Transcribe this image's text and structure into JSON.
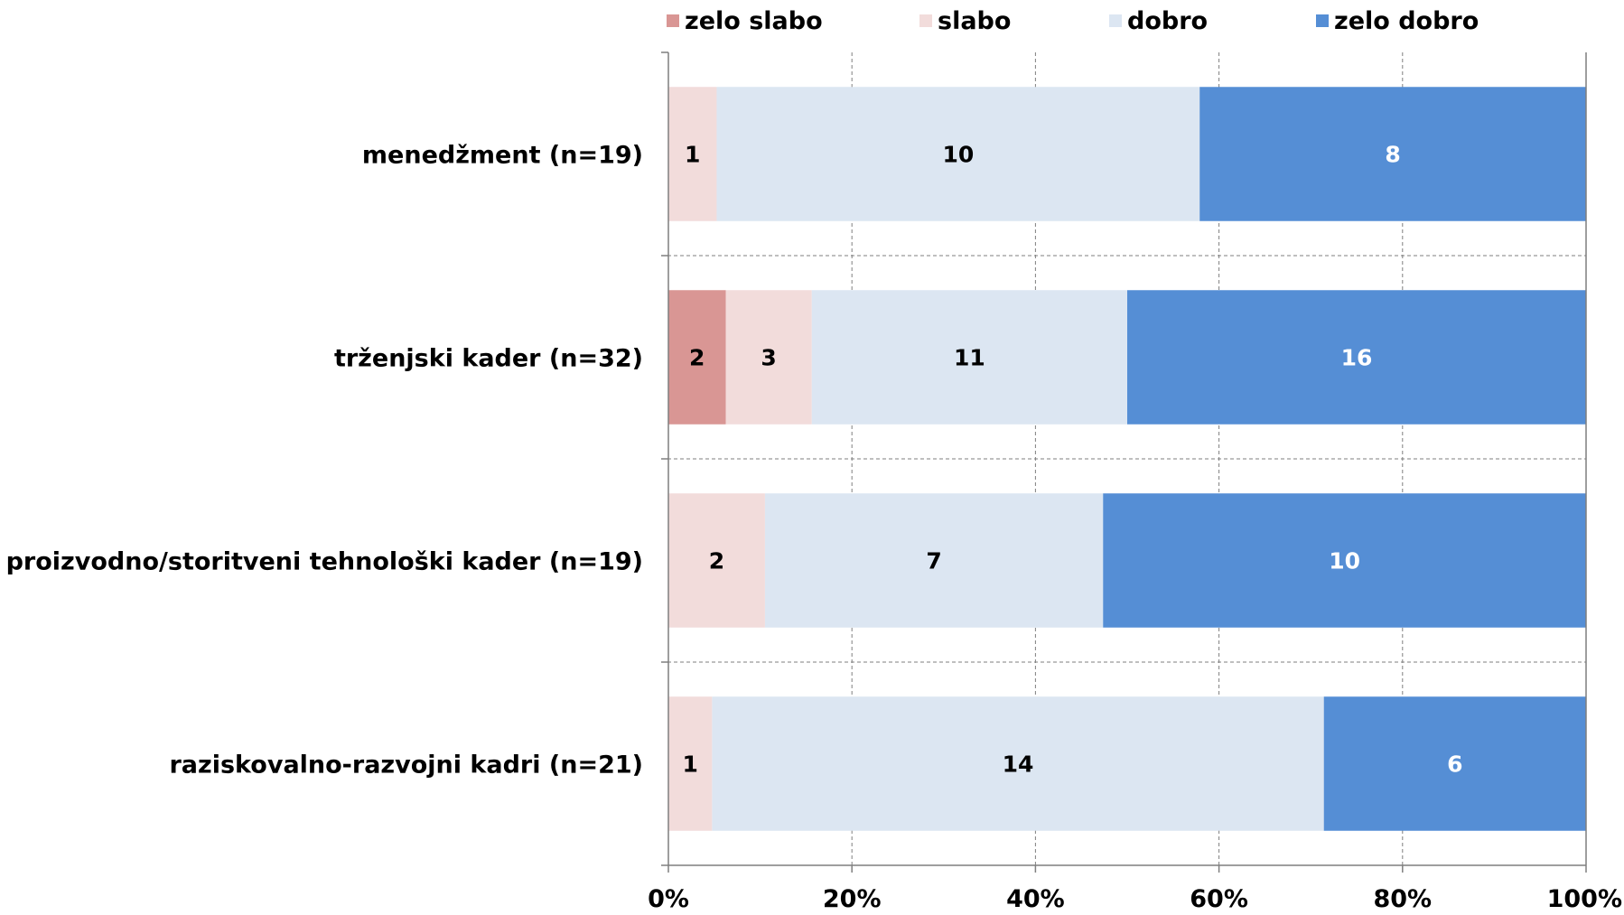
{
  "chart_data": {
    "type": "bar",
    "orientation": "horizontal",
    "stacking": "percent",
    "categories": [
      "menedžment (n=19)",
      "trženjski kader (n=32)",
      "proizvodno/storitveni tehnološki kader (n=19)",
      "raziskovalno-razvojni kadri (n=21)"
    ],
    "series": [
      {
        "name": "zelo slabo",
        "color": "#d99694",
        "label_color": "#000000",
        "values": [
          0,
          2,
          0,
          0
        ]
      },
      {
        "name": "slabo",
        "color": "#f2dcdb",
        "label_color": "#000000",
        "values": [
          1,
          3,
          2,
          1
        ]
      },
      {
        "name": "dobro",
        "color": "#dce6f2",
        "label_color": "#000000",
        "values": [
          10,
          11,
          7,
          14
        ]
      },
      {
        "name": "zelo dobro",
        "color": "#558ed5",
        "label_color": "#ffffff",
        "values": [
          8,
          16,
          10,
          6
        ]
      }
    ],
    "x_ticks": [
      "0%",
      "20%",
      "40%",
      "60%",
      "80%",
      "100%"
    ],
    "xlim": [
      0,
      100
    ],
    "grid": {
      "vertical": true,
      "horizontal_separators": true,
      "style": "dashed"
    },
    "legend": {
      "position": "top"
    },
    "title": "",
    "xlabel": "",
    "ylabel": ""
  }
}
